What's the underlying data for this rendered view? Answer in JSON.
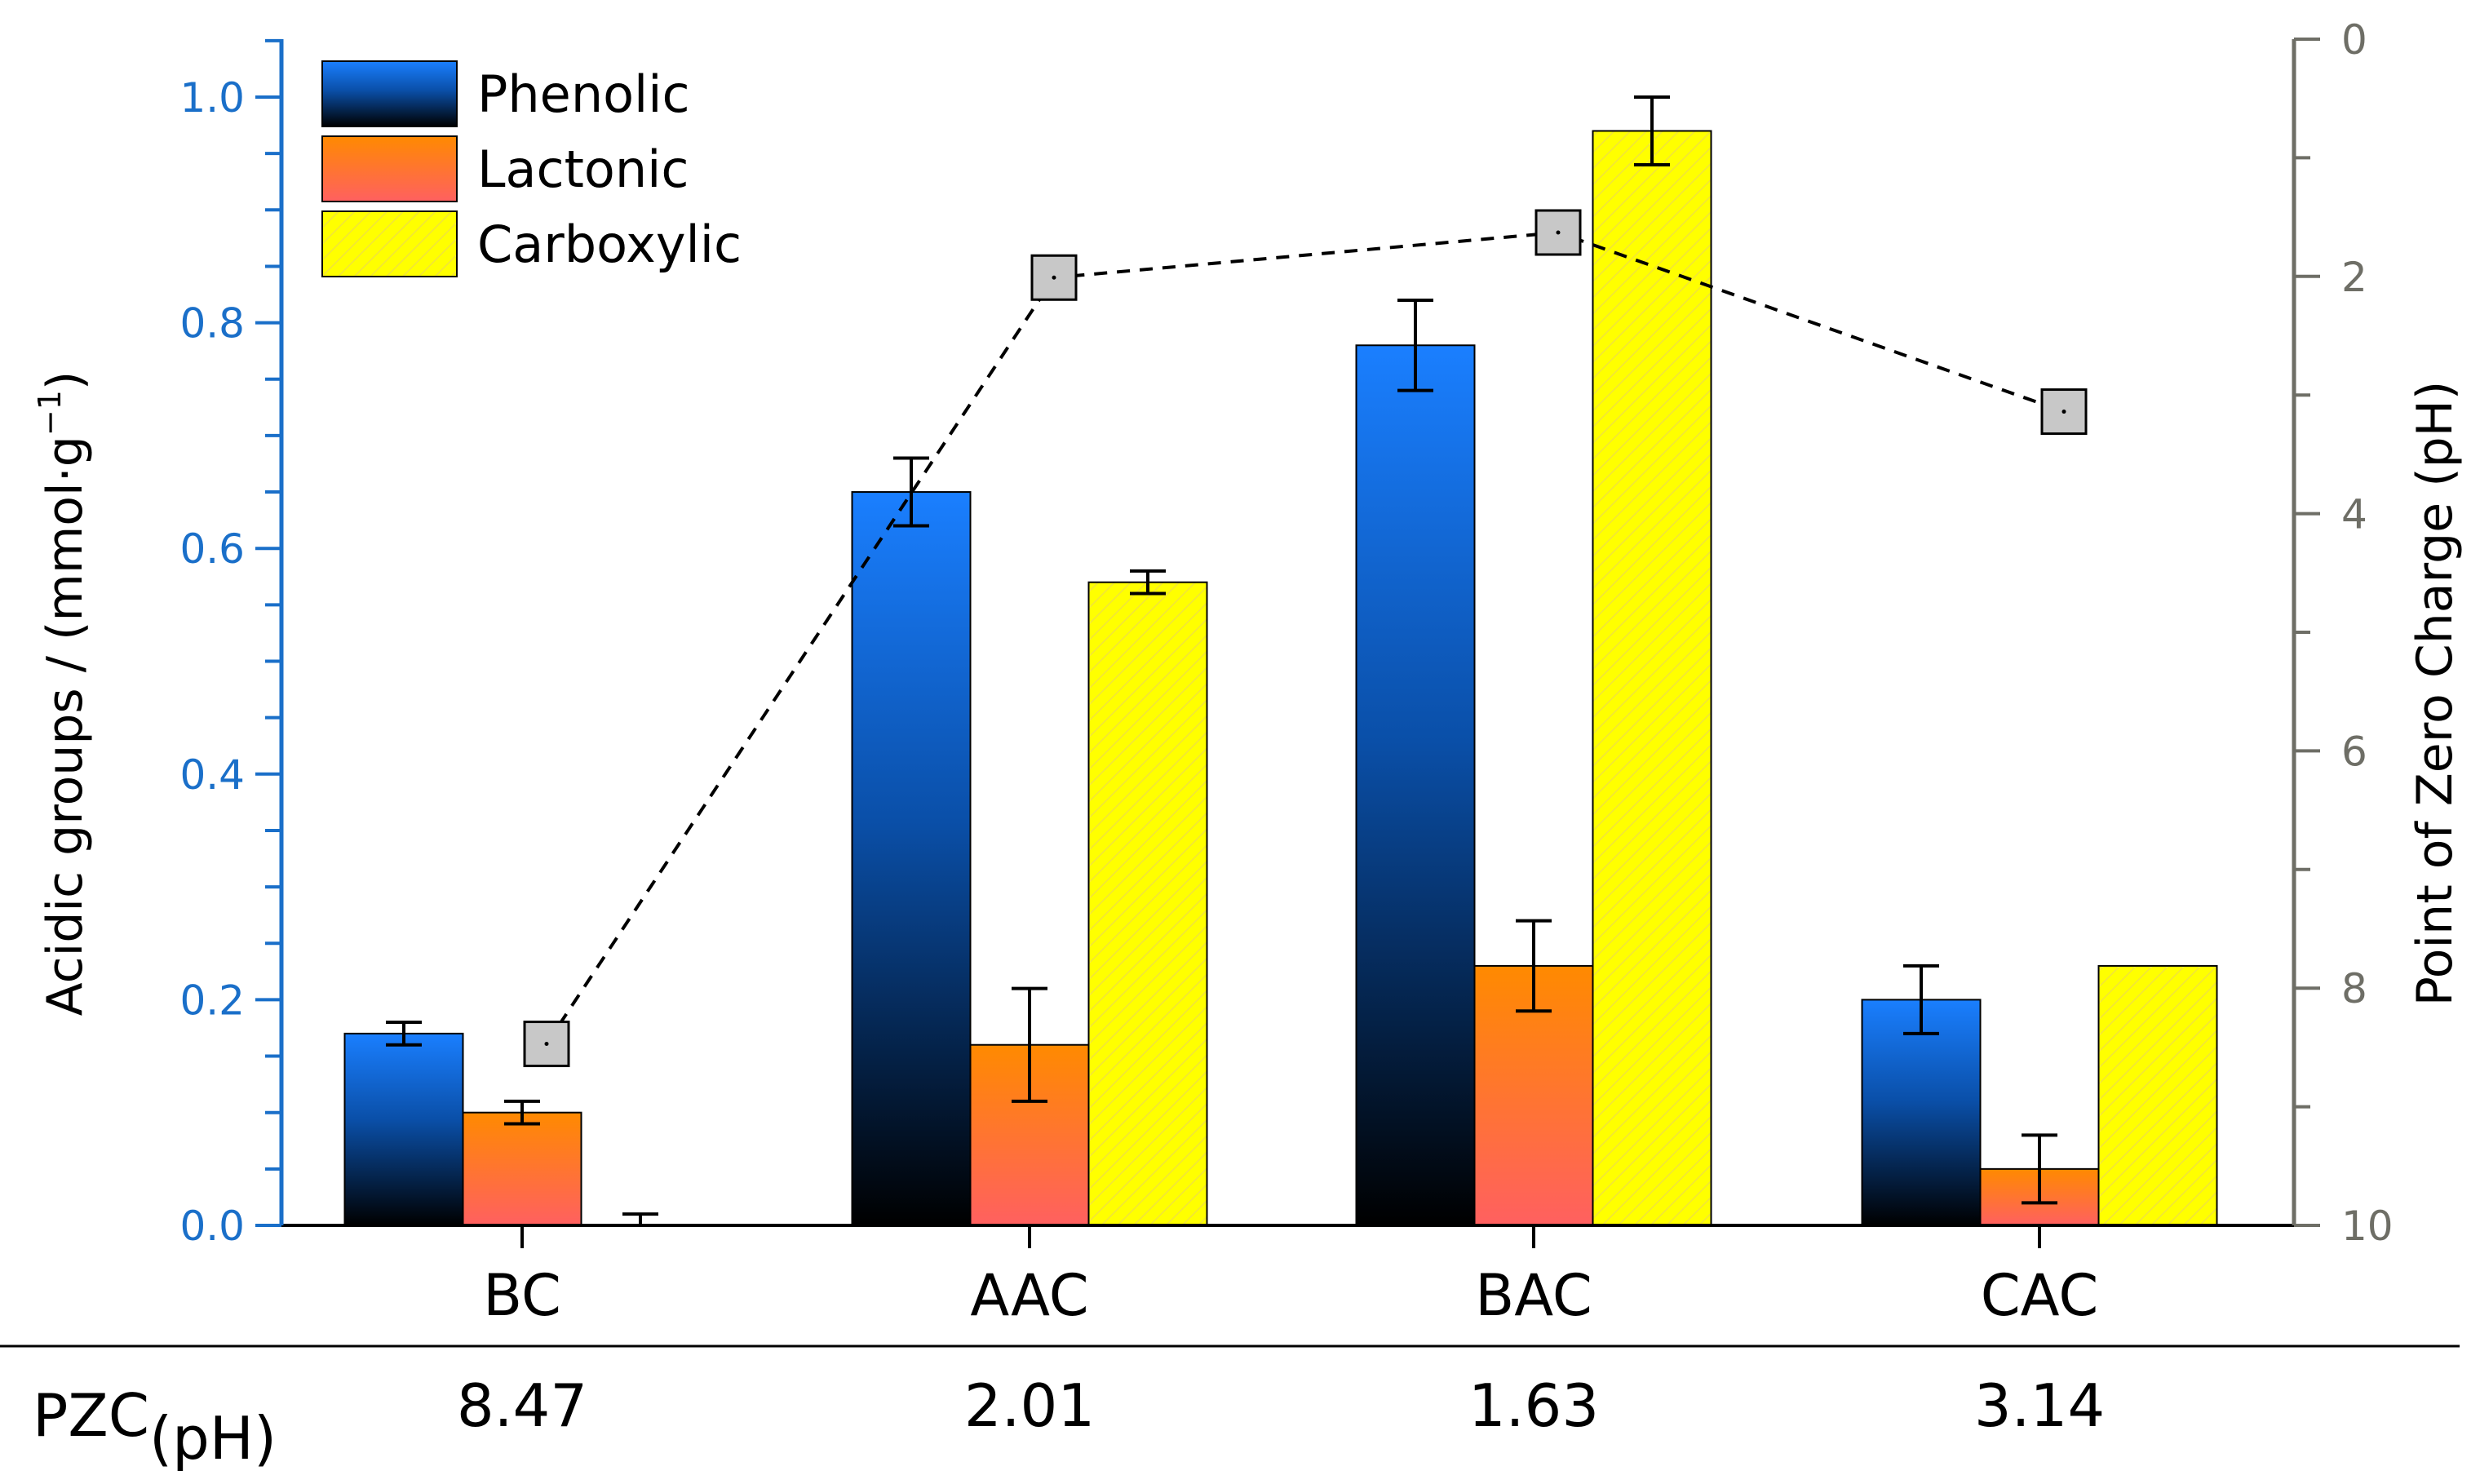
{
  "chart_data": {
    "type": "bar",
    "categories": [
      "BC",
      "AAC",
      "BAC",
      "CAC"
    ],
    "series": [
      {
        "name": "Phenolic",
        "values": [
          0.17,
          0.65,
          0.78,
          0.2
        ],
        "errors": [
          0.01,
          0.03,
          0.04,
          0.03
        ],
        "color_top": "#1a7fff",
        "color_bottom": "#000000"
      },
      {
        "name": "Lactonic",
        "values": [
          0.1,
          0.16,
          0.23,
          0.05
        ],
        "errors": [
          0.01,
          0.05,
          0.04,
          0.03
        ],
        "color_top": "#ff8a00",
        "color_bottom": "#ff6060"
      },
      {
        "name": "Carboxylic",
        "values": [
          0.0,
          0.57,
          0.97,
          0.23
        ],
        "errors": [
          0.01,
          0.01,
          0.03,
          0.0
        ],
        "color_top": "#ffff00",
        "color_bottom": "#ffff00"
      }
    ],
    "pzc_line": {
      "values": [
        8.47,
        2.01,
        1.63,
        3.14
      ],
      "style": "dashed",
      "marker": "square"
    },
    "y_left": {
      "label": "Acidic groups / (mmol·g",
      "label_sup": "−1",
      "label_close": ")",
      "ylim": [
        0.0,
        1.05
      ],
      "ticks": [
        "0.0",
        "0.2",
        "0.4",
        "0.6",
        "0.8",
        "1.0"
      ],
      "color": "#1a6fc9"
    },
    "y_right": {
      "label": "Point of Zero Charge (pH)",
      "ylim": [
        0,
        10
      ],
      "inverted": true,
      "ticks": [
        "0",
        "2",
        "4",
        "6",
        "8",
        "10"
      ],
      "color": "#6e6e66"
    },
    "legend_position": "top-left",
    "grid": false
  },
  "pzc_row": {
    "label": "PZC",
    "label_sub": "(pH)",
    "values": [
      "8.47",
      "2.01",
      "1.63",
      "3.14"
    ]
  }
}
